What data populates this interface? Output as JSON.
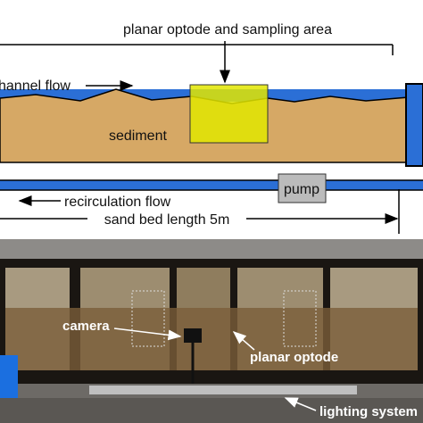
{
  "diagram": {
    "title": "planar optode and sampling area",
    "channel_flow": "channel flow",
    "sediment": "sediment",
    "recirculation_flow": "recirculation flow",
    "pump": "pump",
    "length": "sand bed length 5m"
  },
  "photo": {
    "camera": "camera",
    "planar_optode": "planar optode",
    "lighting": "lighting system"
  }
}
